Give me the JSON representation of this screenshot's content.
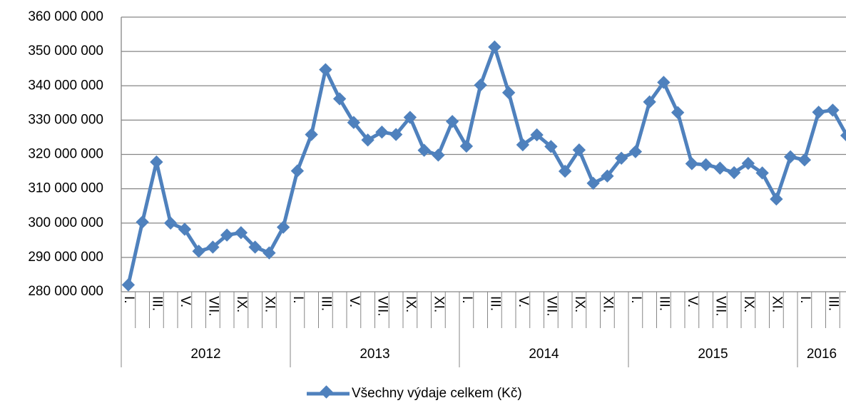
{
  "chart_data": {
    "type": "line",
    "categories": [
      "I.",
      null,
      "III.",
      null,
      "V.",
      null,
      "VII.",
      null,
      "IX.",
      null,
      "XI.",
      null,
      "I.",
      null,
      "III.",
      null,
      "V.",
      null,
      "VII.",
      null,
      "IX.",
      null,
      "XI.",
      null,
      "I.",
      null,
      "III.",
      null,
      "V.",
      null,
      "VII.",
      null,
      "IX.",
      null,
      "XI.",
      null,
      "I.",
      null,
      "III.",
      null,
      "V.",
      null,
      "VII.",
      null,
      "IX.",
      null,
      "XI.",
      null,
      "I.",
      null,
      "III.",
      null
    ],
    "groups": [
      "2012",
      "2013",
      "2014",
      "2015",
      "2016"
    ],
    "series": [
      {
        "name": "Všechny výdaje celkem (Kč)",
        "color": "#4f81bd",
        "values": [
          282000000,
          300300000,
          317800000,
          300000000,
          298200000,
          291800000,
          293000000,
          296500000,
          297200000,
          293000000,
          291300000,
          298800000,
          315200000,
          325800000,
          344700000,
          336200000,
          329300000,
          324200000,
          326500000,
          325800000,
          330800000,
          321200000,
          319800000,
          329600000,
          322400000,
          340200000,
          351300000,
          338000000,
          322800000,
          325700000,
          322300000,
          315100000,
          321300000,
          311600000,
          313700000,
          318900000,
          320800000,
          335300000,
          341000000,
          332200000,
          317300000,
          317000000,
          316000000,
          314700000,
          317400000,
          314600000,
          307000000,
          319300000,
          318400000,
          332300000,
          332900000,
          325500000
        ]
      }
    ],
    "ylim": [
      280000000,
      360000000
    ],
    "yticks": [
      {
        "value": 280000000,
        "label": "280 000 000"
      },
      {
        "value": 290000000,
        "label": "290 000 000"
      },
      {
        "value": 300000000,
        "label": "300 000 000"
      },
      {
        "value": 310000000,
        "label": "310 000 000"
      },
      {
        "value": 320000000,
        "label": "320 000 000"
      },
      {
        "value": 330000000,
        "label": "330 000 000"
      },
      {
        "value": 340000000,
        "label": "340 000 000"
      },
      {
        "value": 350000000,
        "label": "350 000 000"
      },
      {
        "value": 360000000,
        "label": "360 000 000"
      }
    ],
    "grid": true
  }
}
